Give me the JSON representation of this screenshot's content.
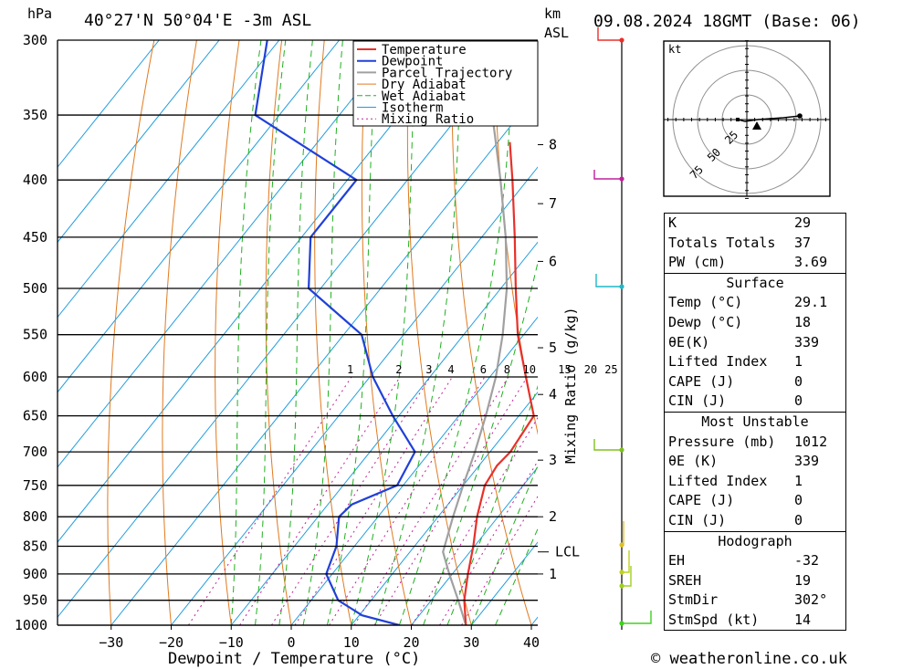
{
  "header": {
    "location": "40°27'N 50°04'E -3m ASL",
    "datetime": "09.08.2024 18GMT (Base: 06)",
    "pressure_unit": "hPa",
    "height_unit": "km",
    "height_ref": "ASL"
  },
  "footer": {
    "copyright": "© weatheronline.co.uk"
  },
  "chart_data": {
    "type": "skew-t",
    "xlabel": "Dewpoint / Temperature (°C)",
    "ylabel_right": "Mixing Ratio (g/kg)",
    "x_ticks": [
      -30,
      -20,
      -10,
      0,
      10,
      20,
      30,
      40
    ],
    "x_range": [
      -40,
      40
    ],
    "pressure_levels": [
      300,
      350,
      400,
      450,
      500,
      550,
      600,
      650,
      700,
      750,
      800,
      850,
      900,
      950,
      1000
    ],
    "km_ticks": [
      {
        "km": "8",
        "p": 372
      },
      {
        "km": "7",
        "p": 420
      },
      {
        "km": "6",
        "p": 473
      },
      {
        "km": "5",
        "p": 565
      },
      {
        "km": "4",
        "p": 622
      },
      {
        "km": "3",
        "p": 712
      },
      {
        "km": "2",
        "p": 800
      },
      {
        "km": "1",
        "p": 900
      }
    ],
    "lcl": {
      "label": "LCL",
      "p": 860
    },
    "mixing_ratio_labels": [
      "1",
      "2",
      "3",
      "4",
      "6",
      "8",
      "10",
      "15",
      "20",
      "25"
    ],
    "legend": [
      "Temperature",
      "Dewpoint",
      "Parcel Trajectory",
      "Dry Adiabat",
      "Wet Adiabat",
      "Isotherm",
      "Mixing Ratio"
    ],
    "colors": {
      "temperature": "#e8302a",
      "dewpoint": "#2040d8",
      "parcel": "#a0a0a0",
      "dry_adiabat": "#e07a20",
      "wet_adiabat": "#20b020",
      "isotherm": "#1e9ce0",
      "mixing_ratio": "#c0209a"
    },
    "temperature": [
      {
        "p": 1000,
        "t": 29.1
      },
      {
        "p": 950,
        "t": 25.5
      },
      {
        "p": 900,
        "t": 22.6
      },
      {
        "p": 850,
        "t": 19.8
      },
      {
        "p": 800,
        "t": 16.5
      },
      {
        "p": 750,
        "t": 13.6
      },
      {
        "p": 720,
        "t": 13.0
      },
      {
        "p": 700,
        "t": 13.4
      },
      {
        "p": 650,
        "t": 12.5
      },
      {
        "p": 600,
        "t": 6.0
      },
      {
        "p": 550,
        "t": -1.0
      },
      {
        "p": 500,
        "t": -7.5
      },
      {
        "p": 450,
        "t": -14.5
      },
      {
        "p": 400,
        "t": -22.5
      },
      {
        "p": 370,
        "t": -28.0
      }
    ],
    "dewpoint": [
      {
        "p": 1000,
        "t": 18.0
      },
      {
        "p": 980,
        "t": 10.5
      },
      {
        "p": 950,
        "t": 4.5
      },
      {
        "p": 900,
        "t": -1.0
      },
      {
        "p": 850,
        "t": -3.0
      },
      {
        "p": 800,
        "t": -6.5
      },
      {
        "p": 780,
        "t": -6.0
      },
      {
        "p": 750,
        "t": -1.0
      },
      {
        "p": 700,
        "t": -2.5
      },
      {
        "p": 650,
        "t": -11.0
      },
      {
        "p": 600,
        "t": -19.5
      },
      {
        "p": 550,
        "t": -27.0
      },
      {
        "p": 500,
        "t": -42.0
      },
      {
        "p": 450,
        "t": -48.5
      },
      {
        "p": 400,
        "t": -48.5
      },
      {
        "p": 350,
        "t": -74.0
      },
      {
        "p": 300,
        "t": -82.0
      }
    ],
    "parcel": [
      {
        "p": 1000,
        "t": 29.1
      },
      {
        "p": 950,
        "t": 24.5
      },
      {
        "p": 900,
        "t": 19.5
      },
      {
        "p": 860,
        "t": 15.5
      },
      {
        "p": 800,
        "t": 12.5
      },
      {
        "p": 750,
        "t": 10.0
      },
      {
        "p": 700,
        "t": 7.5
      },
      {
        "p": 650,
        "t": 4.5
      },
      {
        "p": 600,
        "t": 1.0
      },
      {
        "p": 550,
        "t": -3.5
      },
      {
        "p": 500,
        "t": -9.0
      },
      {
        "p": 450,
        "t": -16.0
      },
      {
        "p": 400,
        "t": -24.5
      },
      {
        "p": 350,
        "t": -34.5
      },
      {
        "p": 300,
        "t": -47.0
      }
    ],
    "hodograph": {
      "unit": "kt",
      "ring_labels": [
        "25",
        "50",
        "75"
      ],
      "points": [
        {
          "u": -10,
          "v": 0
        },
        {
          "u": -2,
          "v": -2
        },
        {
          "u": 12,
          "v": 0
        },
        {
          "u": 40,
          "v": 2
        },
        {
          "u": 58,
          "v": 4
        }
      ],
      "storm_motion": {
        "u": 11,
        "v": -7
      }
    }
  },
  "indices": {
    "general": [
      {
        "label": "K",
        "value": "29"
      },
      {
        "label": "Totals Totals",
        "value": "37"
      },
      {
        "label": "PW (cm)",
        "value": "3.69"
      }
    ],
    "surface": {
      "title": "Surface",
      "rows": [
        {
          "label": "Temp (°C)",
          "value": "29.1"
        },
        {
          "label": "Dewp (°C)",
          "value": "18"
        },
        {
          "label": "θE(K)",
          "value": "339"
        },
        {
          "label": "Lifted Index",
          "value": "1"
        },
        {
          "label": "CAPE (J)",
          "value": "0"
        },
        {
          "label": "CIN (J)",
          "value": "0"
        }
      ]
    },
    "most_unstable": {
      "title": "Most Unstable",
      "rows": [
        {
          "label": "Pressure (mb)",
          "value": "1012"
        },
        {
          "label": "θE (K)",
          "value": "339"
        },
        {
          "label": "Lifted Index",
          "value": "1"
        },
        {
          "label": "CAPE (J)",
          "value": "0"
        },
        {
          "label": "CIN (J)",
          "value": "0"
        }
      ]
    },
    "hodograph": {
      "title": "Hodograph",
      "rows": [
        {
          "label": "EH",
          "value": "-32"
        },
        {
          "label": "SREH",
          "value": "19"
        },
        {
          "label": "StmDir",
          "value": "302°"
        },
        {
          "label": "StmSpd (kt)",
          "value": "14"
        }
      ]
    }
  }
}
